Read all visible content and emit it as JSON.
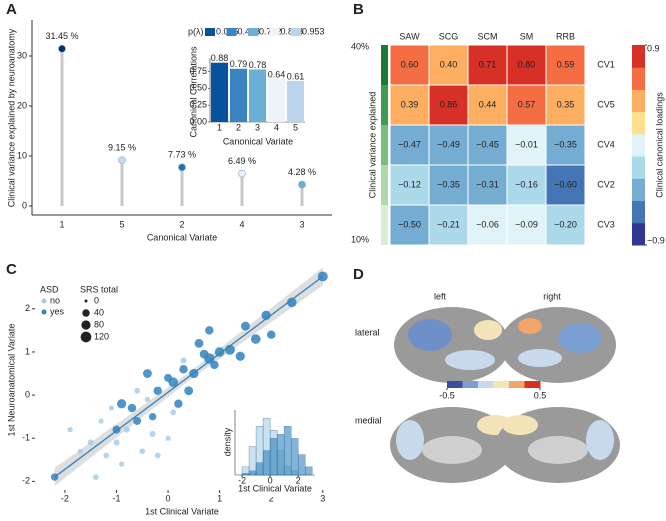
{
  "chart_data": [
    {
      "type": "lollipop",
      "panel": "A",
      "ylabel": "Clinical variance explained by neuroanatomy",
      "xlabel": "Canonical Variate",
      "categories": [
        "1",
        "5",
        "2",
        "4",
        "3"
      ],
      "values": [
        31.45,
        9.15,
        7.73,
        6.49,
        4.28
      ],
      "value_labels": [
        "31.45 %",
        "9.15 %",
        "7.73 %",
        "6.49 %",
        "4.28 %"
      ],
      "colors": [
        "#08306b",
        "#c6dbef",
        "#2171b5",
        "#eff3ff",
        "#6baed6"
      ],
      "ylim": [
        -1.8,
        37.2
      ],
      "yticks": [
        0,
        10,
        20,
        30
      ]
    },
    {
      "type": "bar",
      "ylabel": "Canonical Correlations",
      "xlabel": "Canonical Variate",
      "categories": [
        "1",
        "2",
        "3",
        "4",
        "5"
      ],
      "values": [
        0.88,
        0.79,
        0.78,
        0.64,
        0.61
      ],
      "colors": [
        "#08519c",
        "#3a84c2",
        "#6baed6",
        "#eef3fb",
        "#bcd4ea"
      ],
      "ylim": [
        0,
        0.95
      ],
      "yticks": [
        {
          "value": 0,
          "label": "0.00"
        },
        {
          "value": 0.25,
          "label": "0.25"
        },
        {
          "value": 0.5,
          "label": "0.50"
        },
        {
          "value": 0.75,
          "label": "0.75"
        }
      ],
      "legend_title": "p(λ)",
      "legend_labels": [
        0.025,
        0.408,
        0.702,
        0.898,
        0.953
      ]
    },
    {
      "type": "heatmap",
      "panel": "B",
      "x": [
        "SAW",
        "SCG",
        "SCM",
        "SM",
        "RRB"
      ],
      "y": [
        "CV1",
        "CV5",
        "CV4",
        "CV2",
        "CV3"
      ],
      "values": [
        [
          0.6,
          0.4,
          0.71,
          0.8,
          0.59
        ],
        [
          0.39,
          0.86,
          0.44,
          0.57,
          0.35
        ],
        [
          -0.47,
          -0.49,
          -0.45,
          -0.01,
          -0.35
        ],
        [
          -0.12,
          -0.35,
          -0.31,
          -0.16,
          -0.6
        ],
        [
          -0.5,
          -0.21,
          -0.06,
          -0.09,
          -0.2
        ]
      ],
      "value_labels": [
        [
          "0.60",
          "0.40",
          "0.71",
          "0.80",
          "0.59"
        ],
        [
          "0.39",
          "0.86",
          "0.44",
          "0.57",
          "0.35"
        ],
        [
          "−0.47",
          "−0.49",
          "−0.45",
          "−0.01",
          "−0.35"
        ],
        [
          "−0.12",
          "−0.35",
          "−0.31",
          "−0.16",
          "−0.60"
        ],
        [
          "−0.50",
          "−0.21",
          "−0.06",
          "−0.09",
          "−0.20"
        ]
      ],
      "colorscale": [
        "#313695",
        "#4575b4",
        "#74add1",
        "#abd9e9",
        "#e0f3f8",
        "#fee090",
        "#fdae61",
        "#f46d43",
        "#d73027"
      ],
      "zlim": [
        -0.9,
        0.9
      ],
      "zticks": [
        0.9,
        {
          "value": -0.9,
          "label": "−0.9"
        }
      ],
      "colorbar_label": "Clinical canonical loadings",
      "side_label": "Clinical variance explained",
      "side_ticks": [
        "40%",
        "10%"
      ]
    },
    {
      "type": "scatter",
      "panel": "C",
      "xlabel": "1st Clinical Variate",
      "ylabel": "1st Neuroanatomical Variate",
      "xlim": [
        -2.58,
        3.14
      ],
      "xticks": [
        -2,
        -1,
        0,
        1,
        2,
        3
      ],
      "ylim": [
        -2.2,
        2.9
      ],
      "yticks": [
        -2,
        -1,
        0,
        1,
        2
      ],
      "legend_title": "ASD",
      "size_title": "SRS total",
      "size_legend": [
        0,
        40,
        80,
        120
      ],
      "series": [
        {
          "name": "no",
          "color": "#a6cde6",
          "x": [
            -1.3,
            -1.5,
            -1.2,
            -1.1,
            -0.8,
            -0.5,
            -0.9,
            -0.3,
            -1.7,
            -0.6,
            -1.0,
            0.1,
            -0.4,
            0.3,
            -1.9,
            -1.4,
            0.0,
            -0.2
          ],
          "values": [
            -0.6,
            -1.1,
            -1.4,
            -0.3,
            -0.8,
            -1.3,
            -1.6,
            -0.9,
            -1.3,
            0.1,
            -1.1,
            -0.4,
            -0.1,
            0.8,
            -0.8,
            -1.9,
            -1.0,
            -1.4
          ],
          "sizes": [
            10,
            20,
            15,
            10,
            20,
            15,
            10,
            20,
            10,
            15,
            20,
            15,
            10,
            20,
            10,
            15,
            10,
            15
          ]
        },
        {
          "name": "yes",
          "color": "#3182bd",
          "x": [
            3.0,
            2.4,
            1.9,
            1.2,
            1.0,
            0.8,
            0.7,
            0.9,
            0.5,
            0.4,
            0.3,
            0.1,
            0.0,
            -0.2,
            -0.4,
            -0.7,
            -0.9,
            -0.6,
            1.5,
            1.4,
            2.0,
            0.6,
            0.8,
            -0.3,
            -1.0,
            -2.2,
            1.7,
            0.2
          ],
          "values": [
            2.75,
            2.15,
            1.85,
            1.05,
            1.0,
            0.85,
            0.95,
            0.7,
            0.5,
            0.1,
            0.6,
            0.3,
            0.4,
            0.1,
            0.5,
            -0.3,
            -0.2,
            -0.6,
            1.6,
            0.9,
            1.4,
            1.2,
            1.5,
            -0.5,
            -0.8,
            -1.9,
            1.3,
            -0.2
          ],
          "sizes": [
            100,
            90,
            80,
            100,
            90,
            110,
            70,
            60,
            80,
            70,
            60,
            90,
            50,
            60,
            70,
            60,
            80,
            50,
            70,
            80,
            60,
            70,
            60,
            40,
            50,
            40,
            90,
            60
          ]
        }
      ],
      "fit": {
        "x": [
          -2.2,
          3.0
        ],
        "values": [
          -1.9,
          2.75
        ]
      }
    },
    {
      "type": "histogram",
      "xlabel": "1st Clinical Variate",
      "ylabel": "density",
      "bins": [
        -2,
        -1.5,
        -1,
        -0.5,
        0,
        0.5,
        1,
        1.5,
        2,
        2.5,
        3
      ],
      "xlim": [
        -2.5,
        3.2
      ],
      "xticks": [
        -2,
        0,
        2
      ],
      "ylim": [
        0,
        0.8
      ],
      "series": [
        {
          "name": "no",
          "color": "#a6cde6",
          "values": [
            0.1,
            0.35,
            0.6,
            0.7,
            0.55,
            0.3,
            0.1,
            0.05,
            0,
            0
          ]
        },
        {
          "name": "yes",
          "color": "#3182bd",
          "values": [
            0.02,
            0.05,
            0.15,
            0.3,
            0.45,
            0.5,
            0.6,
            0.45,
            0.25,
            0.1
          ]
        }
      ]
    },
    {
      "type": "brain",
      "panel": "D",
      "columns": [
        "left",
        "right"
      ],
      "rows": [
        "lateral",
        "medial"
      ],
      "colorscale": [
        "#3a4fa3",
        "#7b9fd3",
        "#c7d9ea",
        "#f3e3b8",
        "#f2a46b",
        "#d7301f"
      ],
      "zlim": [
        -0.5,
        0.5
      ],
      "zticks": [
        -0.5,
        0.5
      ]
    }
  ]
}
